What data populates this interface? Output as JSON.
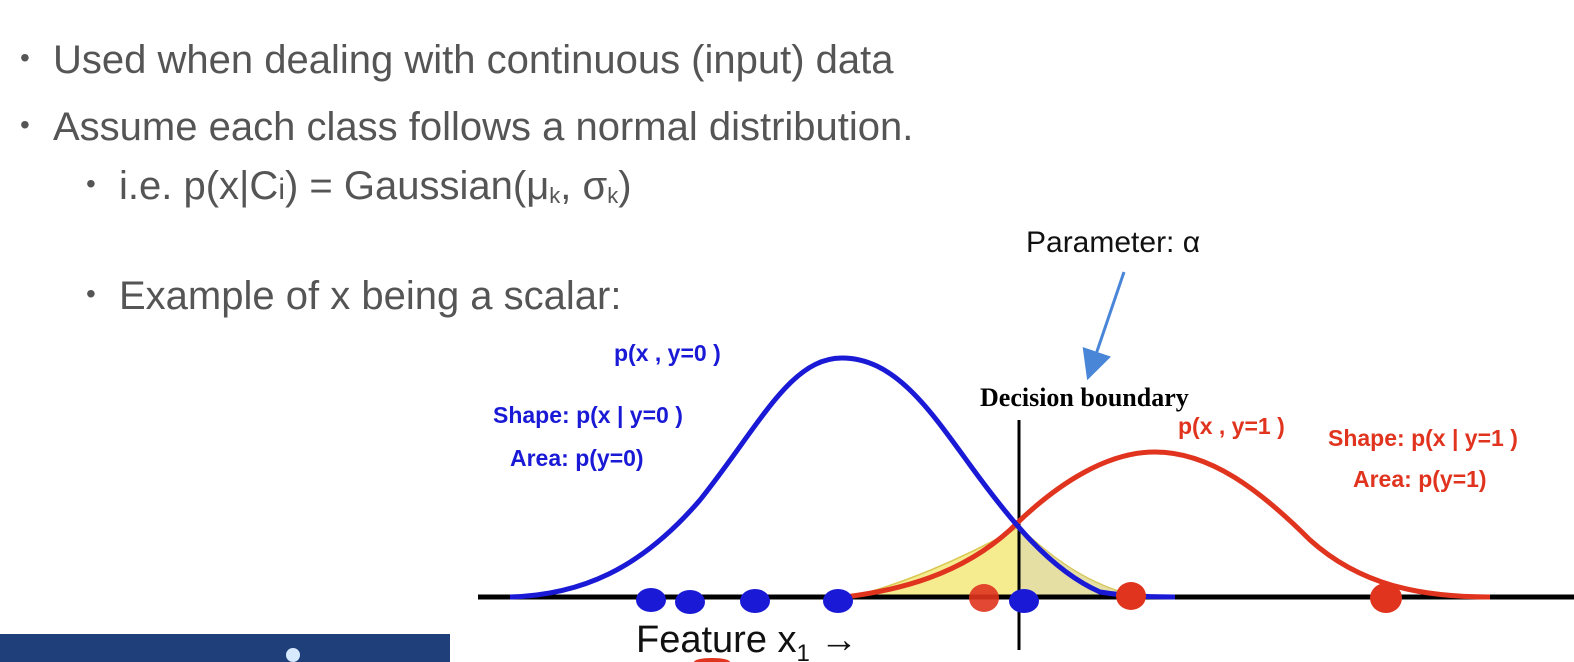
{
  "bullets": [
    {
      "level": 1,
      "text": "Used when dealing with continuous (input) data"
    },
    {
      "level": 1,
      "text": "Assume each class follows a normal distribution."
    },
    {
      "level": 2,
      "prefix": "i.e. p(x|C",
      "sub_i": "i",
      "mid": ") = Gaussian(μ",
      "sub_k1": "k",
      "comma": ", σ",
      "sub_k2": "k",
      "close": ")"
    },
    {
      "level": 2,
      "text": "Example of x being a scalar:"
    }
  ],
  "figure": {
    "parameter_label": "Parameter: α",
    "decision_boundary_label": "Decision boundary",
    "class0": {
      "joint_label": "p(x , y=0 )",
      "shape_label": "Shape: p(x | y=0 )",
      "area_label": "Area: p(y=0)",
      "color": "#1a1ad6"
    },
    "class1": {
      "joint_label": "p(x , y=1 )",
      "shape_label": "Shape:  p(x | y=1 )",
      "area_label": "Area: p(y=1)",
      "color": "#e0341f"
    },
    "axis_label_main": "Feature x",
    "axis_label_sub": "1",
    "axis_label_arrow": "→",
    "overlap_fill_color": "#f5ec8a",
    "arrow_color": "#4a86d8"
  }
}
